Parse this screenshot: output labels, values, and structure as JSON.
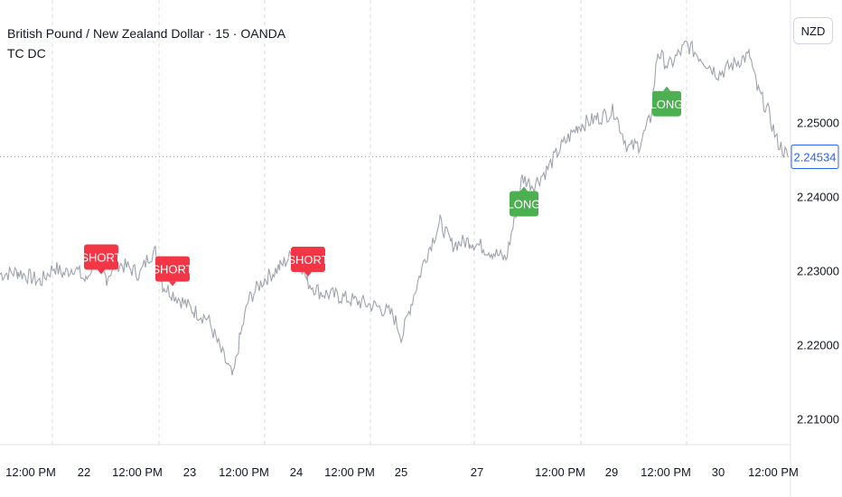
{
  "legend": {
    "symbol": "British Pound / New Zealand Dollar · 15 · OANDA",
    "indicator": "TC DC"
  },
  "currency_button": "NZD",
  "colors": {
    "price_line": "#9ea3ad",
    "short_signal": "#f23645",
    "long_signal": "#4caf50",
    "last_price": "#2962ff",
    "grid": "#d6d8de",
    "axis_text": "#131722"
  },
  "chart_data": {
    "type": "line",
    "title": "",
    "xlabel": "",
    "ylabel": "",
    "ylim": [
      2.2065,
      2.2665
    ],
    "x_ticks": [
      "12:00 PM",
      "22",
      "12:00 PM",
      "23",
      "12:00 PM",
      "24",
      "12:00 PM",
      "25",
      "27",
      "12:00 PM",
      "29",
      "12:00 PM",
      "30",
      "12:00 PM"
    ],
    "y_ticks": [
      "2.25000",
      "2.24000",
      "2.23000",
      "2.22000",
      "2.21000"
    ],
    "y_tick_values": [
      2.25,
      2.24,
      2.23,
      2.22,
      2.21
    ],
    "last_price": {
      "label": "2.24534",
      "value": 2.24534
    },
    "series": [
      {
        "x": [
          0,
          20,
          45,
          60,
          70,
          82,
          95,
          105,
          118,
          128,
          140,
          155,
          165,
          172,
          180,
          190,
          205,
          215,
          230,
          245,
          258,
          265,
          275,
          290,
          310,
          322,
          335,
          340,
          355,
          375,
          390,
          405,
          420,
          435,
          445,
          455,
          470,
          487,
          500,
          520,
          545,
          560,
          568,
          578,
          590,
          605,
          620,
          640,
          660,
          680,
          695,
          708,
          720,
          728,
          740,
          760,
          778,
          795,
          808,
          820,
          830,
          838,
          850,
          860,
          872
        ],
        "y": [
          2.2295,
          2.2298,
          2.2285,
          2.2305,
          2.2295,
          2.2305,
          2.2285,
          2.2315,
          2.229,
          2.231,
          2.2305,
          2.2295,
          2.232,
          2.2325,
          2.228,
          2.227,
          2.2255,
          2.2245,
          2.2235,
          2.219,
          2.2155,
          2.2205,
          2.226,
          2.2285,
          2.2305,
          2.232,
          2.2305,
          2.2285,
          2.227,
          2.2265,
          2.226,
          2.2255,
          2.225,
          2.224,
          2.221,
          2.2255,
          2.2315,
          2.2365,
          2.2335,
          2.234,
          2.2325,
          2.2315,
          2.236,
          2.2425,
          2.2415,
          2.2435,
          2.2465,
          2.2495,
          2.2505,
          2.2515,
          2.2465,
          2.247,
          2.2505,
          2.2595,
          2.2575,
          2.2605,
          2.2585,
          2.2565,
          2.2575,
          2.2585,
          2.259,
          2.2545,
          2.2515,
          2.2475,
          2.24534
        ]
      }
    ],
    "signals": [
      {
        "label": "SHORT",
        "kind": "short",
        "x": 112,
        "value": 2.2318
      },
      {
        "label": "SHORT",
        "kind": "short",
        "x": 191,
        "value": 2.2302
      },
      {
        "label": "SHORT",
        "kind": "short",
        "x": 341,
        "value": 2.2315
      },
      {
        "label": "LONG",
        "kind": "long",
        "x": 580,
        "value": 2.239
      },
      {
        "label": "LONG",
        "kind": "long",
        "x": 738,
        "value": 2.2525
      }
    ],
    "grid": true
  }
}
